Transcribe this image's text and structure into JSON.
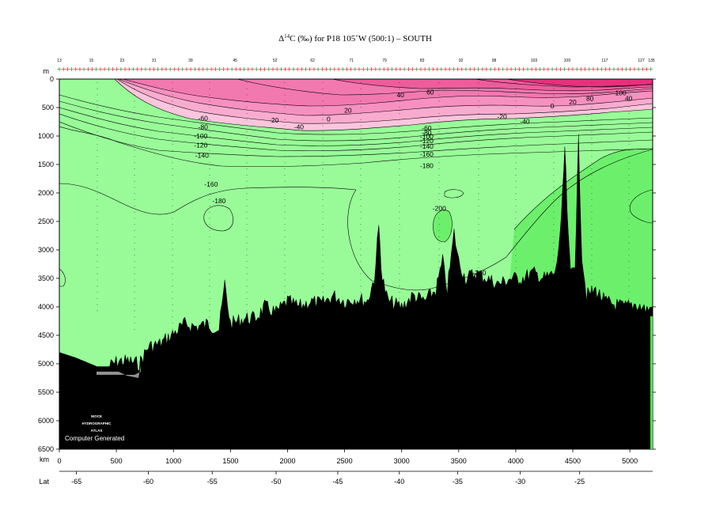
{
  "chart_data": {
    "type": "heatmap",
    "title_prefix": "Δ",
    "title_super": "14",
    "title_suffix": "C (‰) for P18 105˚W (500:1) – SOUTH",
    "x_unit_label": "km",
    "y_unit_label": "m",
    "lat_label": "Lat",
    "xlim": [
      0,
      5200
    ],
    "ylim": [
      6500,
      0
    ],
    "x_ticks": [
      0,
      500,
      1000,
      1500,
      2000,
      2500,
      3000,
      3500,
      4000,
      4500,
      5000
    ],
    "y_ticks": [
      0,
      500,
      1000,
      1500,
      2000,
      2500,
      3000,
      3500,
      4000,
      4500,
      5000,
      5500,
      6000,
      6500
    ],
    "lat_ticks": [
      {
        "km": 150,
        "label": "-65"
      },
      {
        "km": 780,
        "label": "-60"
      },
      {
        "km": 1340,
        "label": "-55"
      },
      {
        "km": 1900,
        "label": "-50"
      },
      {
        "km": 2440,
        "label": "-45"
      },
      {
        "km": 2980,
        "label": "-40"
      },
      {
        "km": 3490,
        "label": "-35"
      },
      {
        "km": 4040,
        "label": "-30"
      },
      {
        "km": 4560,
        "label": "-25"
      }
    ],
    "station_labels": [
      {
        "km": 0,
        "label": "13"
      },
      {
        "km": 280,
        "label": "15"
      },
      {
        "km": 550,
        "label": "23"
      },
      {
        "km": 830,
        "label": "31"
      },
      {
        "km": 1150,
        "label": "39"
      },
      {
        "km": 1540,
        "label": "45"
      },
      {
        "km": 1890,
        "label": "52"
      },
      {
        "km": 2220,
        "label": "62"
      },
      {
        "km": 2560,
        "label": "71"
      },
      {
        "km": 2850,
        "label": "79"
      },
      {
        "km": 3180,
        "label": "83"
      },
      {
        "km": 3520,
        "label": "92"
      },
      {
        "km": 3810,
        "label": "98"
      },
      {
        "km": 4160,
        "label": "103"
      },
      {
        "km": 4450,
        "label": "109"
      },
      {
        "km": 4780,
        "label": "117"
      },
      {
        "km": 5100,
        "label": "127"
      },
      {
        "km": 5190,
        "label": "135"
      }
    ],
    "contour_labels": [
      {
        "km": 2990,
        "depth": 280,
        "value": "40"
      },
      {
        "km": 3250,
        "depth": 230,
        "value": "60"
      },
      {
        "km": 4920,
        "depth": 240,
        "value": "100"
      },
      {
        "km": 4990,
        "depth": 340,
        "value": "40"
      },
      {
        "km": 4650,
        "depth": 340,
        "value": "80"
      },
      {
        "km": 4500,
        "depth": 400,
        "value": "20"
      },
      {
        "km": 4320,
        "depth": 470,
        "value": "0"
      },
      {
        "km": 2530,
        "depth": 550,
        "value": "20"
      },
      {
        "km": 2360,
        "depth": 700,
        "value": "0"
      },
      {
        "km": 1880,
        "depth": 720,
        "value": "-20"
      },
      {
        "km": 3880,
        "depth": 660,
        "value": "-20"
      },
      {
        "km": 2100,
        "depth": 840,
        "value": "-40"
      },
      {
        "km": 4080,
        "depth": 740,
        "value": "-40"
      },
      {
        "km": 1260,
        "depth": 690,
        "value": "-60"
      },
      {
        "km": 1260,
        "depth": 840,
        "value": "-80"
      },
      {
        "km": 1240,
        "depth": 1000,
        "value": "-100"
      },
      {
        "km": 1240,
        "depth": 1160,
        "value": "-120"
      },
      {
        "km": 1250,
        "depth": 1340,
        "value": "-140"
      },
      {
        "km": 3220,
        "depth": 860,
        "value": "-60"
      },
      {
        "km": 3220,
        "depth": 940,
        "value": "-80"
      },
      {
        "km": 3220,
        "depth": 1010,
        "value": "-100"
      },
      {
        "km": 3220,
        "depth": 1080,
        "value": "-120"
      },
      {
        "km": 3220,
        "depth": 1180,
        "value": "-140"
      },
      {
        "km": 3220,
        "depth": 1320,
        "value": "-160"
      },
      {
        "km": 3220,
        "depth": 1520,
        "value": "-180"
      },
      {
        "km": 1330,
        "depth": 1850,
        "value": "-160"
      },
      {
        "km": 1400,
        "depth": 2140,
        "value": "-180"
      },
      {
        "km": 3330,
        "depth": 2270,
        "value": "-200"
      },
      {
        "km": 3680,
        "depth": 3400,
        "value": "-200"
      }
    ],
    "bottom_profile": [
      [
        0,
        4800
      ],
      [
        150,
        4900
      ],
      [
        330,
        5050
      ],
      [
        430,
        5050
      ],
      [
        520,
        4950
      ],
      [
        600,
        4950
      ],
      [
        700,
        5000
      ],
      [
        780,
        4700
      ],
      [
        880,
        4650
      ],
      [
        980,
        4500
      ],
      [
        1100,
        4300
      ],
      [
        1200,
        4350
      ],
      [
        1300,
        4300
      ],
      [
        1400,
        4400
      ],
      [
        1450,
        3600
      ],
      [
        1500,
        4300
      ],
      [
        1620,
        4200
      ],
      [
        1720,
        4200
      ],
      [
        1800,
        4000
      ],
      [
        1900,
        4100
      ],
      [
        2000,
        3900
      ],
      [
        2100,
        4000
      ],
      [
        2200,
        3900
      ],
      [
        2300,
        3950
      ],
      [
        2400,
        3800
      ],
      [
        2500,
        3900
      ],
      [
        2600,
        3850
      ],
      [
        2700,
        3900
      ],
      [
        2760,
        3500
      ],
      [
        2800,
        2600
      ],
      [
        2830,
        3500
      ],
      [
        2880,
        3900
      ],
      [
        3000,
        4000
      ],
      [
        3100,
        3800
      ],
      [
        3200,
        3900
      ],
      [
        3300,
        3700
      ],
      [
        3360,
        3200
      ],
      [
        3400,
        3700
      ],
      [
        3460,
        2700
      ],
      [
        3500,
        3200
      ],
      [
        3560,
        3500
      ],
      [
        3650,
        3400
      ],
      [
        3750,
        3500
      ],
      [
        3850,
        3600
      ],
      [
        3950,
        3500
      ],
      [
        4050,
        3500
      ],
      [
        4150,
        3400
      ],
      [
        4250,
        3500
      ],
      [
        4350,
        3400
      ],
      [
        4400,
        2500
      ],
      [
        4430,
        1200
      ],
      [
        4460,
        2800
      ],
      [
        4480,
        3400
      ],
      [
        4520,
        3200
      ],
      [
        4550,
        1100
      ],
      [
        4580,
        3100
      ],
      [
        4620,
        3800
      ],
      [
        4700,
        3700
      ],
      [
        4780,
        3900
      ],
      [
        4850,
        3950
      ],
      [
        4950,
        4000
      ],
      [
        5050,
        3950
      ],
      [
        5150,
        4050
      ],
      [
        5200,
        4000
      ]
    ],
    "watermark_lines": [
      "WOCE",
      "HYDROGRAPHIC",
      "ATLAS"
    ],
    "footer_note": "Computer Generated",
    "colors": {
      "above_100": "#e8307e",
      "60_to_100": "#ee5c9c",
      "20_to_60": "#f278b0",
      "0_to_20": "#f690c0",
      "minus20_to_0": "#f8abcf",
      "minus40_to_minus20": "#fbc5dd",
      "below_minus40": "#98fb98",
      "below_minus200": "#6cf06c",
      "bottom": "#000000"
    }
  }
}
